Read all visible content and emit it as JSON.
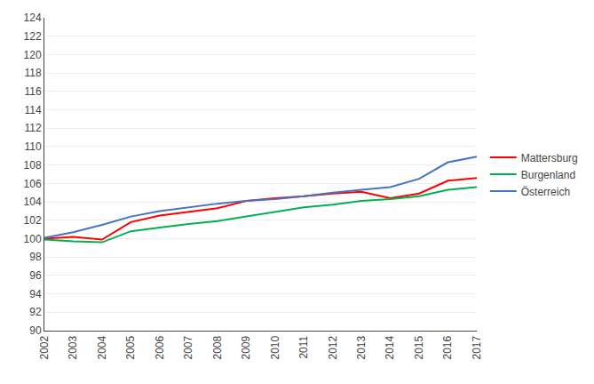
{
  "chart_data": {
    "type": "line",
    "x": [
      2002,
      2003,
      2004,
      2005,
      2006,
      2007,
      2008,
      2009,
      2010,
      2011,
      2012,
      2013,
      2014,
      2015,
      2016,
      2017
    ],
    "series": [
      {
        "name": "Mattersburg",
        "color": "#ff0000",
        "values": [
          100.0,
          100.2,
          99.9,
          101.8,
          102.5,
          102.9,
          103.3,
          104.1,
          104.4,
          104.6,
          104.9,
          105.1,
          104.4,
          104.9,
          106.3,
          106.6
        ]
      },
      {
        "name": "Burgenland",
        "color": "#00b050",
        "values": [
          99.9,
          99.7,
          99.6,
          100.8,
          101.2,
          101.6,
          101.9,
          102.4,
          102.9,
          103.4,
          103.7,
          104.1,
          104.3,
          104.6,
          105.3,
          105.6
        ]
      },
      {
        "name": "Österreich",
        "color": "#4472c4",
        "values": [
          100.1,
          100.7,
          101.5,
          102.4,
          103.0,
          103.4,
          103.8,
          104.1,
          104.3,
          104.6,
          105.0,
          105.3,
          105.6,
          106.5,
          108.3,
          108.9
        ]
      }
    ],
    "xlim": [
      2002,
      2017
    ],
    "xticks": [
      2002,
      2003,
      2004,
      2005,
      2006,
      2007,
      2008,
      2009,
      2010,
      2011,
      2012,
      2013,
      2014,
      2015,
      2016,
      2017
    ],
    "ylim": [
      90,
      124
    ],
    "yticks": [
      90,
      92,
      94,
      96,
      98,
      100,
      102,
      104,
      106,
      108,
      110,
      112,
      114,
      116,
      118,
      120,
      122,
      124
    ],
    "grid": "y",
    "legend": "right"
  }
}
